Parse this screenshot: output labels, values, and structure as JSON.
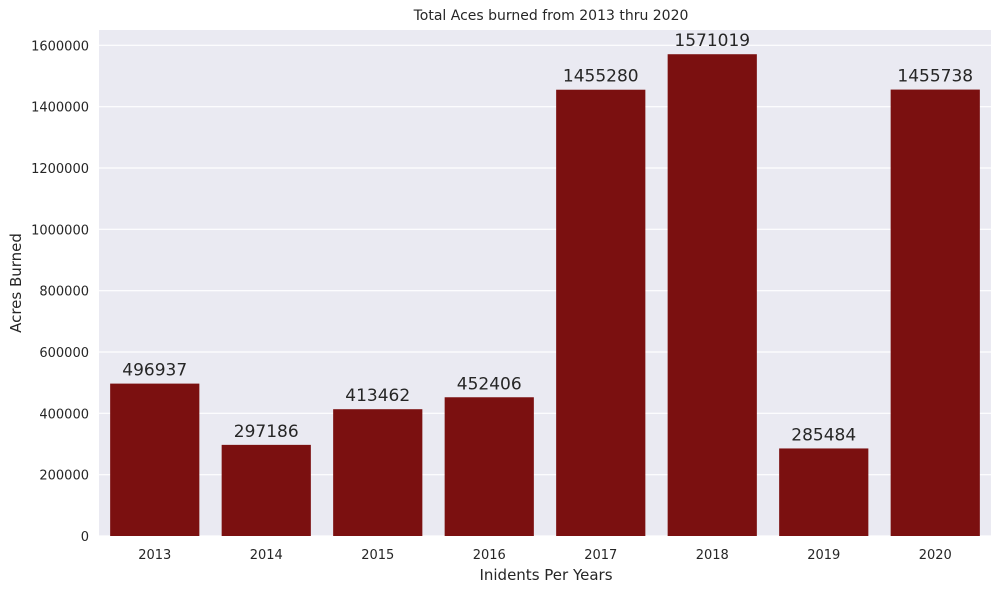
{
  "chart_data": {
    "type": "bar",
    "title": "Total Aces burned from 2013 thru 2020",
    "xlabel": "Inidents Per Years",
    "ylabel": "Acres Burned",
    "categories": [
      "2013",
      "2014",
      "2015",
      "2016",
      "2017",
      "2018",
      "2019",
      "2020"
    ],
    "values": [
      496937,
      297186,
      413462,
      452406,
      1455280,
      1571019,
      285484,
      1455738
    ],
    "data_labels": [
      "496937",
      "297186",
      "413462",
      "452406",
      "1455280",
      "1571019",
      "285484",
      "1455738"
    ],
    "yticks": [
      0,
      200000,
      400000,
      600000,
      800000,
      1000000,
      1200000,
      1400000,
      1600000
    ],
    "ytick_labels": [
      "0",
      "200000",
      "400000",
      "600000",
      "800000",
      "1000000",
      "1200000",
      "1400000",
      "1600000"
    ],
    "ylim": [
      0,
      1650000
    ],
    "grid": true,
    "legend": "none",
    "colors": {
      "bar": "#7b1010",
      "plot_background": "#eaeaf2",
      "grid": "#ffffff"
    }
  }
}
